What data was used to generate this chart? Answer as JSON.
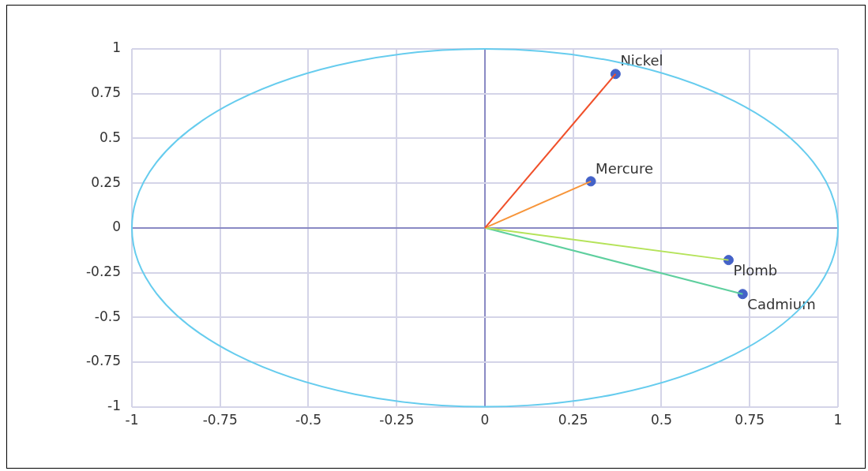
{
  "chart_data": {
    "type": "scatter",
    "xlim": [
      -1,
      1
    ],
    "ylim": [
      -1,
      1
    ],
    "xticks": [
      -1,
      -0.75,
      -0.5,
      -0.25,
      0,
      0.25,
      0.5,
      0.75,
      1
    ],
    "yticks": [
      -1,
      -0.75,
      -0.5,
      -0.25,
      0,
      0.25,
      0.5,
      0.75,
      1
    ],
    "grid": true,
    "legend": false,
    "series": [
      {
        "type": "line",
        "color": "#f0502a",
        "marker": "none",
        "x": [
          0,
          0.37
        ],
        "values": [
          0,
          0.86
        ]
      },
      {
        "type": "line",
        "color": "#f7953a",
        "marker": "none",
        "x": [
          0,
          0.3
        ],
        "values": [
          0,
          0.26
        ]
      },
      {
        "type": "line",
        "color": "#b5e35a",
        "marker": "none",
        "x": [
          0,
          0.69
        ],
        "values": [
          0,
          -0.18
        ]
      },
      {
        "type": "line",
        "color": "#5ecf9e",
        "marker": "none",
        "x": [
          0,
          0.73
        ],
        "values": [
          0,
          -0.37
        ]
      },
      {
        "color": "#4462c8",
        "marker": "circle",
        "x": [
          0.37,
          0.3,
          0.69,
          0.73
        ],
        "values": [
          0.86,
          0.26,
          -0.18,
          -0.37
        ]
      }
    ],
    "annotations": [
      {
        "text": "Nickel",
        "x": 0.37,
        "y": 0.86
      },
      {
        "text": "Mercure",
        "x": 0.3,
        "y": 0.26
      },
      {
        "text": "Plomb",
        "x": 0.69,
        "y": -0.18
      },
      {
        "text": "Cadmium",
        "x": 0.73,
        "y": -0.37
      }
    ]
  }
}
